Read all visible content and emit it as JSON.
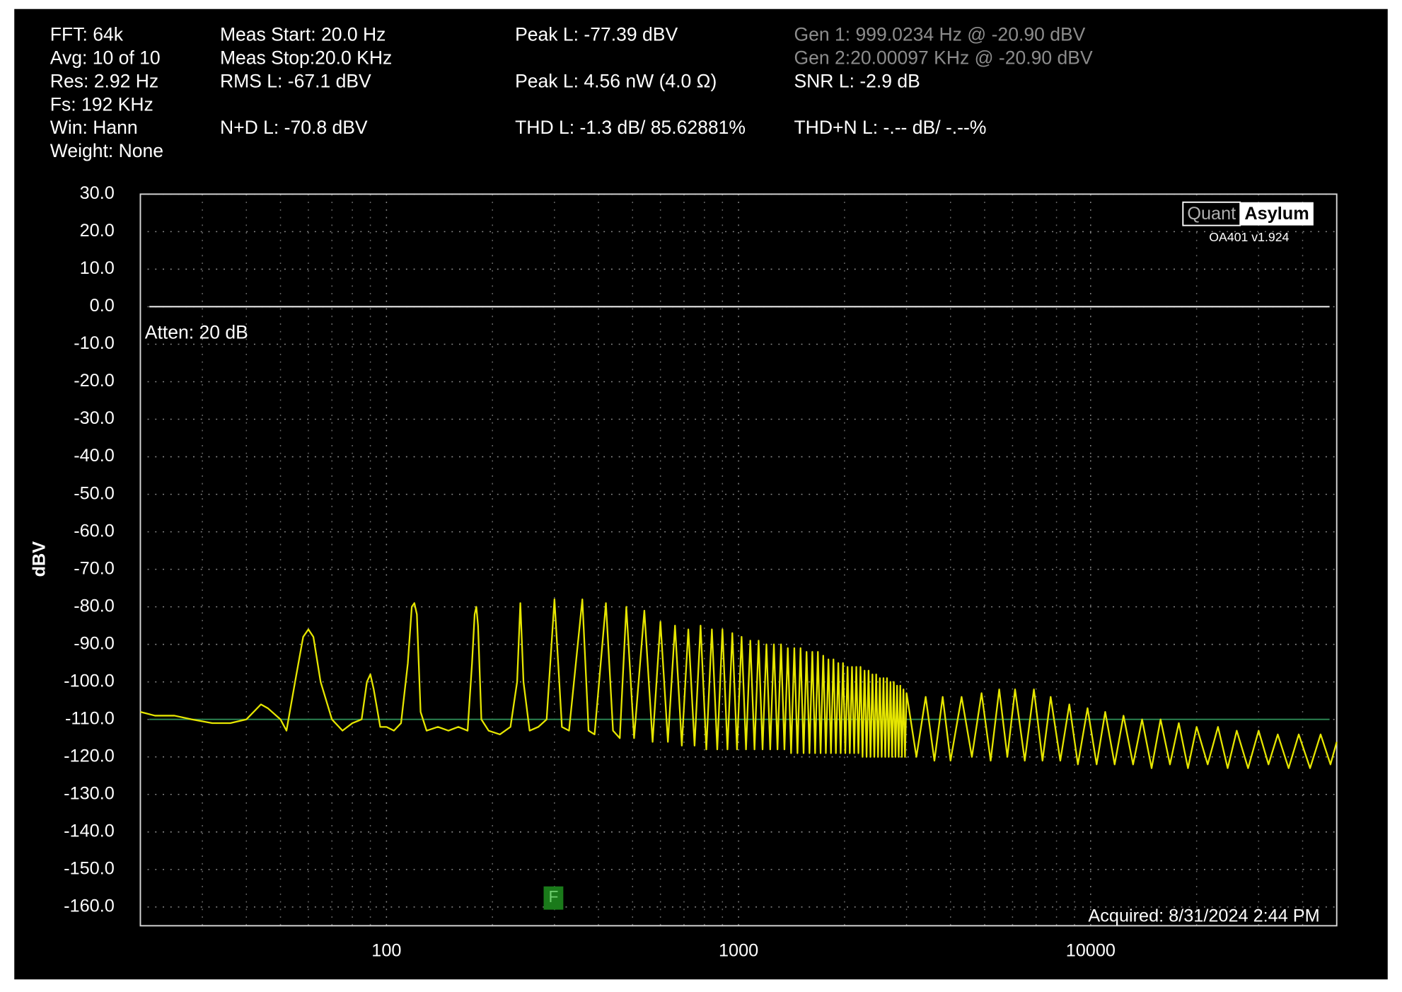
{
  "chart_data": {
    "type": "line",
    "xscale": "log",
    "grid": "dotted",
    "ylabel": "dBV",
    "xlim": [
      20,
      50000
    ],
    "ylim": [
      -165,
      30
    ],
    "xticks": [
      100,
      1000,
      10000
    ],
    "xminorticks": [
      30,
      40,
      50,
      60,
      70,
      80,
      90,
      200,
      300,
      400,
      500,
      600,
      700,
      800,
      900,
      2000,
      3000,
      4000,
      5000,
      6000,
      7000,
      8000,
      9000,
      20000,
      30000,
      40000
    ],
    "yticks": [
      {
        "value": 30,
        "label": "30.0"
      },
      {
        "value": 20,
        "label": "20.0"
      },
      {
        "value": 10,
        "label": "10.0"
      },
      {
        "value": 0,
        "label": "0.0"
      },
      {
        "value": -10,
        "label": "-10.0"
      },
      {
        "value": -20,
        "label": "-20.0"
      },
      {
        "value": -30,
        "label": "-30.0"
      },
      {
        "value": -40,
        "label": "-40.0"
      },
      {
        "value": -50,
        "label": "-50.0"
      },
      {
        "value": -60,
        "label": "-60.0"
      },
      {
        "value": -70,
        "label": "-70.0"
      },
      {
        "value": -80,
        "label": "-80.0"
      },
      {
        "value": -90,
        "label": "-90.0"
      },
      {
        "value": -100,
        "label": "-100.0"
      },
      {
        "value": -110,
        "label": "-110.0"
      },
      {
        "value": -120,
        "label": "-120.0"
      },
      {
        "value": -130,
        "label": "-130.0"
      },
      {
        "value": -140,
        "label": "-140.0"
      },
      {
        "value": -150,
        "label": "-150.0"
      },
      {
        "value": -160,
        "label": "-160.0"
      }
    ],
    "hlines": [
      {
        "value": 0,
        "color": "#ffffff"
      },
      {
        "value": -110,
        "color": "#2e8b57"
      }
    ],
    "stats": [
      [
        "FFT: 64k",
        "Avg: 10 of 10",
        "Res: 2.92 Hz",
        "Fs: 192 KHz",
        "Win: Hann",
        "Weight: None"
      ],
      [
        "Meas Start: 20.0 Hz",
        "Meas Stop:20.0 KHz",
        "RMS L: -67.1 dBV",
        null,
        "N+D L: -70.8 dBV"
      ],
      [
        "Peak L: -77.39 dBV",
        null,
        "Peak L: 4.56 nW (4.0 Ω)",
        null,
        "THD L: -1.3 dB/ 85.62881%"
      ],
      [
        "Gen 1: 999.0234 Hz @ -20.90  dBV",
        "Gen 2:20.00097 KHz @ -20.90  dBV",
        "SNR L: -2.9 dB",
        null,
        "THD+N L: -.-- dB/ -.--%"
      ]
    ],
    "annotations": {
      "atten": "Atten: 20 dB",
      "acquired": "Acquired: 8/31/2024  2:44 PM",
      "marker": "F"
    },
    "logo": {
      "quant": "Quant",
      "asylum": "Asylum",
      "version": "OA401 v1.924"
    },
    "x": [
      20,
      22,
      25,
      28,
      32,
      36,
      40,
      44,
      46,
      50,
      52,
      55,
      58,
      60,
      62,
      65,
      70,
      75,
      80,
      85,
      88,
      90,
      92,
      96,
      100,
      105,
      110,
      115,
      118,
      120,
      122,
      125,
      130,
      140,
      150,
      160,
      170,
      175,
      178,
      180,
      182,
      186,
      195,
      210,
      225,
      235,
      240,
      245,
      255,
      270,
      285,
      300,
      315,
      330,
      360,
      375,
      390,
      420,
      440,
      460,
      480,
      505,
      540,
      570,
      600,
      630,
      660,
      690,
      720,
      750,
      780,
      810,
      840,
      870,
      900,
      930,
      960,
      990,
      1020,
      1050,
      1080,
      1110,
      1140,
      1170,
      1200,
      1230,
      1260,
      1290,
      1320,
      1350,
      1380,
      1410,
      1440,
      1470,
      1500,
      1530,
      1560,
      1590,
      1620,
      1650,
      1680,
      1710,
      1740,
      1770,
      1800,
      1830,
      1860,
      1890,
      1920,
      1950,
      1980,
      2010,
      2040,
      2070,
      2100,
      2130,
      2160,
      2190,
      2220,
      2250,
      2280,
      2310,
      2340,
      2370,
      2400,
      2430,
      2460,
      2490,
      2520,
      2550,
      2580,
      2610,
      2640,
      2670,
      2700,
      2730,
      2760,
      2790,
      2820,
      2850,
      2880,
      2910,
      2940,
      2970,
      3000,
      3200,
      3400,
      3600,
      3800,
      4000,
      4300,
      4600,
      4900,
      5200,
      5500,
      5800,
      6100,
      6500,
      6900,
      7300,
      7700,
      8200,
      8700,
      9200,
      9800,
      10400,
      11000,
      11700,
      12400,
      13200,
      14000,
      14900,
      15800,
      16800,
      17800,
      18900,
      20000,
      21500,
      23000,
      24500,
      26000,
      28000,
      30000,
      32000,
      34000,
      36500,
      39000,
      42000,
      45000,
      48000,
      50000
    ],
    "series": [
      {
        "name": "L",
        "color": "#e6e600",
        "values": [
          -108,
          -109,
          -109,
          -110,
          -111,
          -111,
          -110,
          -106,
          -107,
          -110,
          -113,
          -100,
          -88,
          -86,
          -88,
          -100,
          -110,
          -113,
          -111,
          -110,
          -100,
          -98,
          -102,
          -112,
          -112,
          -113,
          -111,
          -95,
          -80,
          -79,
          -82,
          -108,
          -113,
          -112,
          -113,
          -112,
          -113,
          -95,
          -82,
          -80,
          -85,
          -110,
          -113,
          -114,
          -112,
          -100,
          -79,
          -100,
          -113,
          -112,
          -110,
          -78,
          -112,
          -113,
          -78,
          -113,
          -114,
          -79,
          -113,
          -115,
          -80,
          -115,
          -81,
          -116,
          -84,
          -116,
          -85,
          -117,
          -86,
          -117,
          -85,
          -118,
          -86,
          -118,
          -86,
          -118,
          -87,
          -118,
          -88,
          -118,
          -89,
          -118,
          -89,
          -118,
          -90,
          -118,
          -90,
          -118,
          -90,
          -118,
          -91,
          -119,
          -91,
          -119,
          -91,
          -119,
          -92,
          -119,
          -92,
          -119,
          -92,
          -119,
          -93,
          -119,
          -94,
          -119,
          -94,
          -119,
          -95,
          -119,
          -95,
          -119,
          -96,
          -119,
          -96,
          -119,
          -96,
          -119,
          -96,
          -120,
          -97,
          -120,
          -97,
          -120,
          -98,
          -120,
          -98,
          -120,
          -99,
          -120,
          -99,
          -120,
          -99,
          -120,
          -100,
          -120,
          -100,
          -120,
          -101,
          -120,
          -101,
          -120,
          -102,
          -120,
          -103,
          -120,
          -104,
          -121,
          -104,
          -121,
          -104,
          -120,
          -103,
          -121,
          -102,
          -120,
          -102,
          -121,
          -102,
          -121,
          -104,
          -121,
          -106,
          -122,
          -107,
          -122,
          -108,
          -122,
          -109,
          -122,
          -110,
          -123,
          -110,
          -122,
          -111,
          -123,
          -112,
          -122,
          -112,
          -123,
          -113,
          -123,
          -113,
          -122,
          -114,
          -123,
          -114,
          -123,
          -114,
          -122,
          -116
        ]
      }
    ]
  }
}
